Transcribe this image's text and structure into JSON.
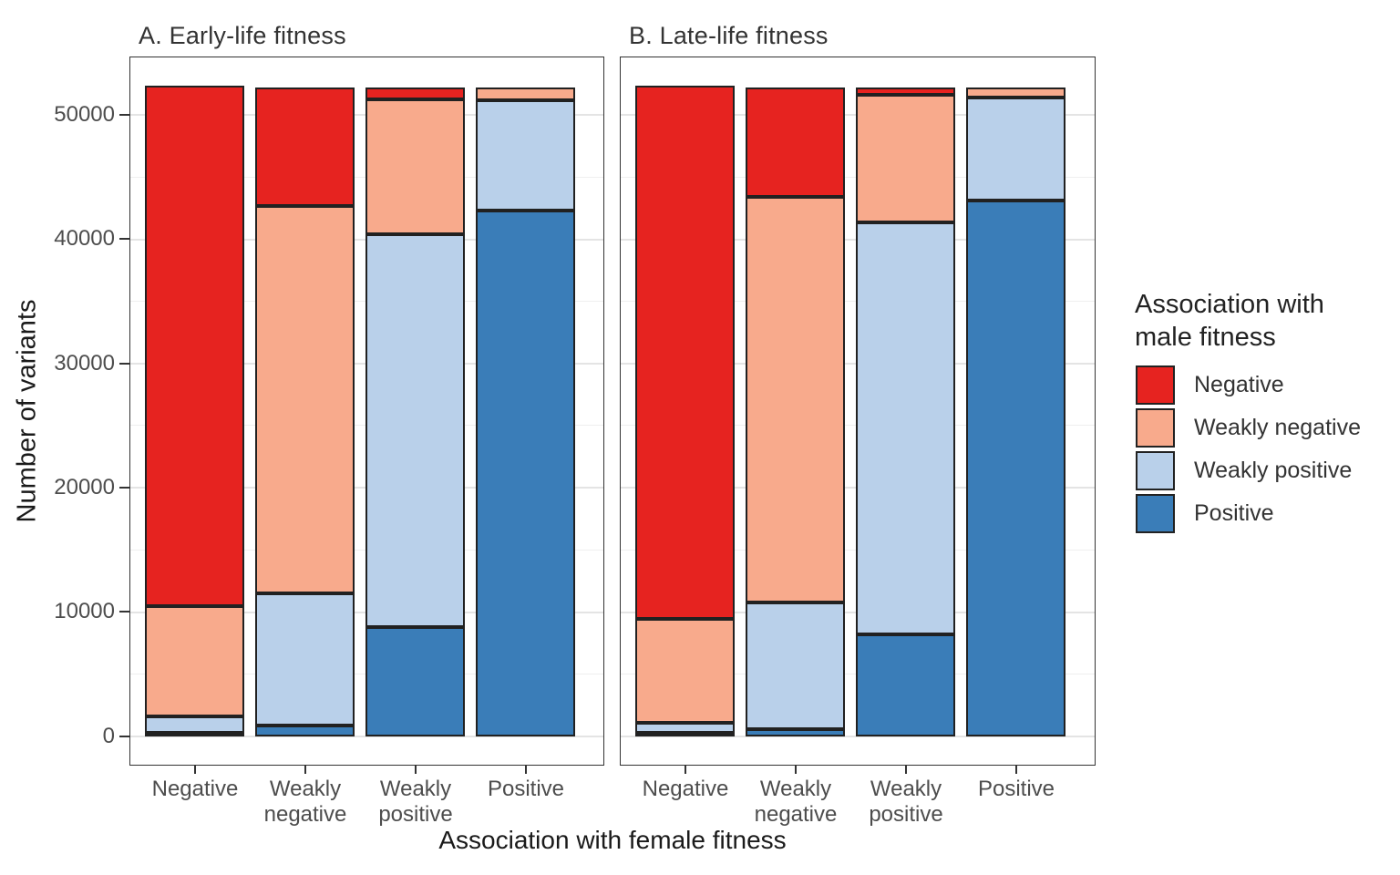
{
  "figure": {
    "y_axis_title": "Number of variants",
    "x_axis_title": "Association with female fitness",
    "y_tick_labels": [
      "0",
      "10000",
      "20000",
      "30000",
      "40000",
      "50000"
    ],
    "y_tick_values": [
      0,
      10000,
      20000,
      30000,
      40000,
      50000
    ],
    "colors": {
      "negative": "#e62320",
      "weakly_negative": "#f8aa8c",
      "weakly_positive": "#b9d0ea",
      "positive": "#3a7db8",
      "segment_border": "#212121",
      "panel_border": "#333333",
      "gridline": "#e4e4e4"
    },
    "legend": {
      "title": "Association with male fitness",
      "entries": [
        {
          "label": "Negative",
          "color": "#e62320"
        },
        {
          "label": "Weakly negative",
          "color": "#f8aa8c"
        },
        {
          "label": "Weakly positive",
          "color": "#b9d0ea"
        },
        {
          "label": "Positive",
          "color": "#3a7db8"
        }
      ]
    }
  },
  "chart_data": {
    "type": "bar",
    "stacked": true,
    "xlabel": "Association with female fitness",
    "ylabel": "Number of variants",
    "ylim": [
      0,
      55000
    ],
    "grid": true,
    "legend_title": "Association with male fitness",
    "legend_position": "right",
    "categories": [
      "Negative",
      "Weakly negative",
      "Weakly positive",
      "Positive"
    ],
    "x_tick_lines": [
      [
        "Negative"
      ],
      [
        "Weakly",
        "negative"
      ],
      [
        "Weakly",
        "positive"
      ],
      [
        "Positive"
      ]
    ],
    "panels": [
      {
        "label": "A. Early-life fitness",
        "series": [
          {
            "name": "Negative",
            "color": "#e62320",
            "values": [
              41900,
              9500,
              900,
              0
            ]
          },
          {
            "name": "Weakly negative",
            "color": "#f8aa8c",
            "values": [
              8900,
              31200,
              10900,
              1000
            ]
          },
          {
            "name": "Weakly positive",
            "color": "#b9d0ea",
            "values": [
              1300,
              10600,
              31600,
              8900
            ]
          },
          {
            "name": "Positive",
            "color": "#3a7db8",
            "values": [
              100,
              900,
              8800,
              42300
            ]
          }
        ]
      },
      {
        "label": "B. Late-life fitness",
        "series": [
          {
            "name": "Negative",
            "color": "#e62320",
            "values": [
              42900,
              8800,
              550,
              0
            ]
          },
          {
            "name": "Weakly negative",
            "color": "#f8aa8c",
            "values": [
              8400,
              32600,
              10250,
              800
            ]
          },
          {
            "name": "Weakly positive",
            "color": "#b9d0ea",
            "values": [
              800,
              10200,
              33200,
              8300
            ]
          },
          {
            "name": "Positive",
            "color": "#3a7db8",
            "values": [
              100,
              600,
              8200,
              43100
            ]
          }
        ]
      }
    ]
  }
}
